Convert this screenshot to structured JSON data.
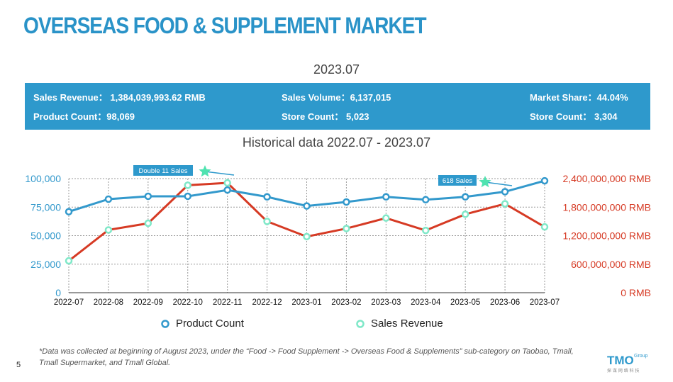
{
  "header": {
    "title": "OVERSEAS FOOD & SUPPLEMENT MARKET",
    "period": "2023.07"
  },
  "stats": {
    "sales_revenue": "Sales Revenue：  1,384,039,993.62   RMB",
    "sales_volume": "Sales Volume：6,137,015",
    "market_share": "Market Share：44.04%",
    "product_count": "Product Count：98,069",
    "store_count_1": "Store Count：  5,023",
    "store_count_2": "Store Count：   3,304"
  },
  "historical_title": "Historical data 2022.07 - 2023.07",
  "chart_data": {
    "type": "line",
    "x": [
      "2022-07",
      "2022-08",
      "2022-09",
      "2022-10",
      "2022-11",
      "2022-12",
      "2023-01",
      "2023-02",
      "2023-03",
      "2023-04",
      "2023-05",
      "2023-06",
      "2023-07"
    ],
    "series": [
      {
        "name": "Product Count",
        "axis": "left",
        "color": "#3399cc",
        "values": [
          71000,
          82000,
          84500,
          84500,
          90000,
          84000,
          76000,
          79500,
          84000,
          81500,
          84000,
          88500,
          98069
        ]
      },
      {
        "name": "Sales Revenue",
        "axis": "right",
        "color": "#d63a24",
        "values": [
          670000000,
          1320000000,
          1460000000,
          2260000000,
          2310000000,
          1500000000,
          1180000000,
          1350000000,
          1570000000,
          1310000000,
          1650000000,
          1870000000,
          1384039993.62
        ]
      }
    ],
    "y_left": {
      "min": 0,
      "max": 100000,
      "ticks": [
        "0",
        "25,000",
        "50,000",
        "75,000",
        "100,000"
      ],
      "color": "#3399cc"
    },
    "y_right": {
      "min": 0,
      "max": 2400000000,
      "ticks": [
        "0 RMB",
        "600,000,000 RMB",
        "1,200,000,000 RMB",
        "1,800,000,000 RMB",
        "2,400,000,000 RMB"
      ],
      "color": "#d63a24"
    },
    "annotations": [
      {
        "label": "Double 11 Sales",
        "x": "2022-11"
      },
      {
        "label": "618 Sales",
        "x": "2023-06"
      }
    ],
    "grid": true,
    "legend": "bottom"
  },
  "legend": {
    "product_count": "Product Count",
    "sales_revenue": "Sales Revenue"
  },
  "footnote": "*Data was collected at beginning of August 2023, under the “Food -> Food Supplement -> Overseas Food & Supplements” sub-category on Taobao, Tmall, Tmall Supermarket, and Tmall Global.",
  "page_number": "5",
  "logo": {
    "text": "TMO",
    "sub": "Group",
    "tagline": "探 谋 网 络 科 技"
  },
  "colors": {
    "accent": "#2e99cc",
    "title": "#2a93c8",
    "revenue": "#d63a24",
    "count": "#3399cc",
    "marker_fill": "#7fe8c8"
  }
}
